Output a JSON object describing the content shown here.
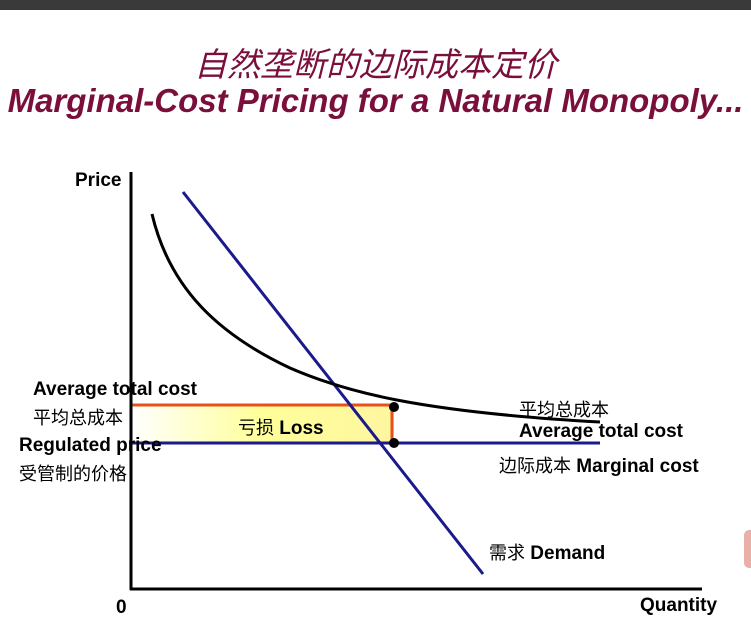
{
  "title": {
    "chinese": "自然垄断的边际成本定价",
    "english": "Marginal-Cost Pricing for a Natural Monopoly..."
  },
  "axes": {
    "y_label": "Price",
    "x_label": "Quantity",
    "origin_label": "0"
  },
  "labels": {
    "atc_left_en": "Average total cost",
    "atc_left_cn": "平均总成本",
    "regulated_price_en": "Regulated price",
    "regulated_price_cn": "受管制的价格",
    "loss_cn": "亏损",
    "loss_en": "Loss",
    "atc_right_cn": "平均总成本",
    "atc_right_en": "Average total cost",
    "mc_cn": "边际成本",
    "mc_en": "Marginal cost",
    "demand_cn": "需求",
    "demand_en": "Demand"
  },
  "colors": {
    "title": "#7a0f3c",
    "demand_line": "#1a1a8c",
    "mc_line": "#1a1a8c",
    "atc_curve": "#000000",
    "loss_fill": "#ffffc0",
    "loss_border": "#e8501a"
  }
}
